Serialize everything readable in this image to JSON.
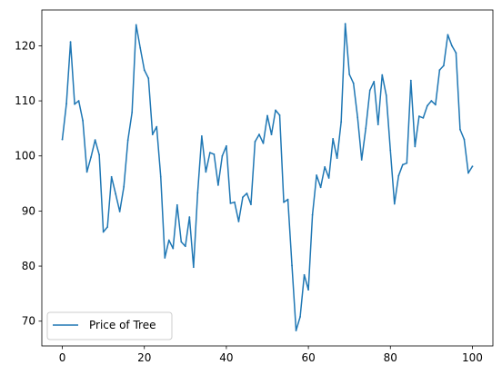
{
  "chart_data": {
    "type": "line",
    "title": "",
    "xlabel": "",
    "ylabel": "",
    "xlim": [
      -5,
      105
    ],
    "ylim": [
      65.5,
      126.5
    ],
    "x_ticks": [
      0,
      20,
      40,
      60,
      80,
      100
    ],
    "y_ticks": [
      70,
      80,
      90,
      100,
      110,
      120
    ],
    "grid": false,
    "legend": {
      "placement": "lower-left",
      "entries": [
        "Price of Tree"
      ]
    },
    "series": [
      {
        "name": "Price of Tree",
        "color": "#1f77b4",
        "x": [
          0,
          1,
          2,
          3,
          4,
          5,
          6,
          7,
          8,
          9,
          10,
          11,
          12,
          13,
          14,
          15,
          16,
          17,
          18,
          19,
          20,
          21,
          22,
          23,
          24,
          25,
          26,
          27,
          28,
          29,
          30,
          31,
          32,
          33,
          34,
          35,
          36,
          37,
          38,
          39,
          40,
          41,
          42,
          43,
          44,
          45,
          46,
          47,
          48,
          49,
          50,
          51,
          52,
          53,
          54,
          55,
          56,
          57,
          58,
          59,
          60,
          61,
          62,
          63,
          64,
          65,
          66,
          67,
          68,
          69,
          70,
          71,
          72,
          73,
          74,
          75,
          76,
          77,
          78,
          79,
          80,
          81,
          82,
          83,
          84,
          85,
          86,
          87,
          88,
          89,
          90,
          91,
          92,
          93,
          94,
          95,
          96,
          97,
          98,
          99,
          100
        ],
        "values": [
          103.0,
          109.5,
          120.7,
          109.4,
          110.0,
          106.4,
          97.1,
          99.8,
          102.9,
          100.2,
          86.2,
          87.1,
          96.2,
          93.1,
          89.9,
          94.4,
          102.9,
          107.9,
          123.8,
          119.6,
          115.6,
          114.1,
          103.9,
          105.3,
          96.2,
          81.5,
          84.7,
          83.2,
          91.1,
          84.4,
          83.6,
          88.9,
          79.8,
          93.3,
          103.6,
          97.1,
          100.6,
          100.3,
          94.7,
          100.0,
          101.8,
          91.4,
          91.6,
          88.1,
          92.5,
          93.2,
          91.2,
          102.6,
          103.9,
          102.3,
          107.3,
          103.9,
          108.3,
          107.4,
          91.6,
          92.1,
          80.1,
          68.3,
          70.8,
          78.4,
          75.7,
          89.3,
          96.5,
          94.3,
          98.0,
          96.0,
          103.1,
          99.6,
          106.2,
          124.0,
          114.8,
          113.2,
          107.0,
          99.3,
          105.0,
          111.9,
          113.5,
          105.7,
          114.7,
          111.0,
          101.0,
          91.3,
          96.4,
          98.4,
          98.7,
          113.7,
          101.7,
          107.2,
          106.9,
          109.1,
          110.0,
          109.3,
          115.6,
          116.4,
          122.0,
          120.0,
          118.7,
          104.8,
          103.0,
          96.9,
          98.1
        ]
      }
    ]
  }
}
